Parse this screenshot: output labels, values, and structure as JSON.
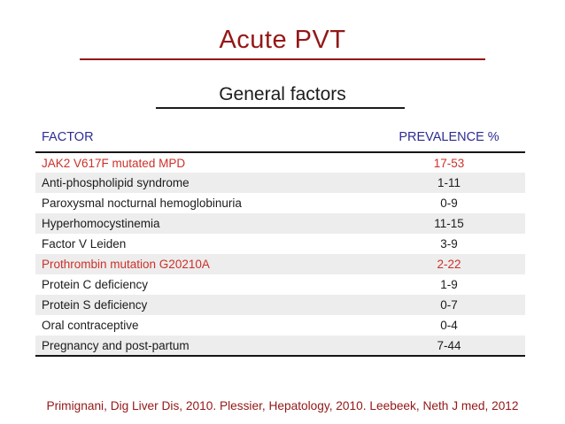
{
  "slide": {
    "title": "Acute PVT",
    "subtitle": "General factors",
    "citation": "Primignani, Dig Liver Dis, 2010. Plessier, Hepatology, 2010. Leebeek, Neth J med, 2012"
  },
  "table": {
    "columns": [
      "FACTOR",
      "PREVALENCE %"
    ],
    "rows": [
      {
        "factor": "JAK2 V617F mutated MPD",
        "prevalence": "17-53",
        "highlight": true
      },
      {
        "factor": "Anti-phospholipid syndrome",
        "prevalence": "1-11",
        "highlight": false
      },
      {
        "factor": "Paroxysmal nocturnal hemoglobinuria",
        "prevalence": "0-9",
        "highlight": false
      },
      {
        "factor": "Hyperhomocystinemia",
        "prevalence": "11-15",
        "highlight": false
      },
      {
        "factor": "Factor V Leiden",
        "prevalence": "3-9",
        "highlight": false
      },
      {
        "factor": "Prothrombin mutation G20210A",
        "prevalence": "2-22",
        "highlight": true
      },
      {
        "factor": "Protein C deficiency",
        "prevalence": "1-9",
        "highlight": false
      },
      {
        "factor": "Protein S deficiency",
        "prevalence": "0-7",
        "highlight": false
      },
      {
        "factor": "Oral contraceptive",
        "prevalence": "0-4",
        "highlight": false
      },
      {
        "factor": "Pregnancy and post-partum",
        "prevalence": "7-44",
        "highlight": false
      }
    ]
  },
  "colors": {
    "title_red": "#941717",
    "highlight_red": "#cc302a",
    "header_navy": "#2d2d93",
    "row_stripe": "#ededed",
    "text_black": "#1c1c1c"
  }
}
